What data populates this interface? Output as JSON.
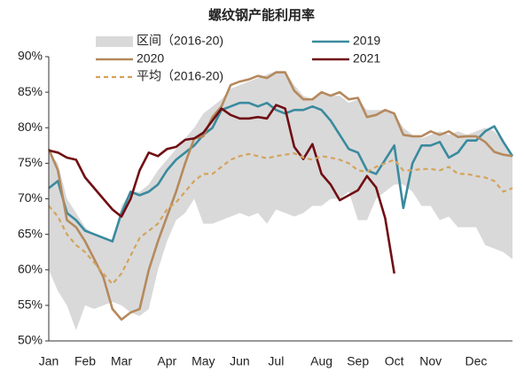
{
  "chart_data": {
    "type": "line",
    "title": "螺纹钢产能利用率",
    "categories": [
      "Jan",
      null,
      null,
      null,
      "Feb",
      null,
      null,
      null,
      "Mar",
      null,
      null,
      null,
      null,
      "Apr",
      null,
      null,
      null,
      "May",
      null,
      null,
      null,
      "Jun",
      null,
      null,
      null,
      "Jul",
      null,
      null,
      null,
      null,
      "Aug",
      null,
      null,
      null,
      "Sep",
      null,
      null,
      null,
      "Oct",
      null,
      null,
      null,
      "Nov",
      null,
      null,
      null,
      null,
      "Dec",
      null,
      null,
      null,
      null
    ],
    "ylim": [
      50,
      90
    ],
    "yticks": [
      {
        "value": 50,
        "label": "50%"
      },
      {
        "value": 55,
        "label": "55%"
      },
      {
        "value": 60,
        "label": "60%"
      },
      {
        "value": 65,
        "label": "65%"
      },
      {
        "value": 70,
        "label": "70%"
      },
      {
        "value": 75,
        "label": "75%"
      },
      {
        "value": 80,
        "label": "80%"
      },
      {
        "value": 85,
        "label": "85%"
      },
      {
        "value": 90,
        "label": "90%"
      }
    ],
    "series": [
      {
        "name": "区间（2016-20)",
        "color": "#d9d9d9",
        "style": "band",
        "upper": [
          76.5,
          75,
          70,
          68,
          66,
          65,
          64.5,
          64,
          69,
          71,
          71,
          72,
          74,
          75.5,
          77,
          78.5,
          80,
          82,
          83,
          84,
          85.5,
          86,
          86.5,
          87,
          87.5,
          88,
          88,
          86,
          84.5,
          84,
          85,
          84.5,
          84.5,
          83.5,
          84,
          82.5,
          82.5,
          82.5,
          82,
          80,
          79,
          78.5,
          79,
          79.5,
          79,
          79.5,
          79,
          79.5,
          80,
          79.5,
          78,
          76
        ],
        "lower": [
          60,
          57,
          55,
          51.5,
          55,
          54.5,
          55,
          55.5,
          55,
          54,
          53.5,
          54.5,
          60,
          64,
          67,
          68,
          70,
          66.5,
          66.5,
          67,
          67.5,
          68,
          67.5,
          68,
          66.5,
          68.5,
          68,
          67.5,
          68,
          69,
          69,
          70,
          70,
          71,
          67,
          67,
          70,
          71,
          72,
          72,
          71,
          69,
          69,
          67,
          67.5,
          66,
          66,
          66,
          63.5,
          63,
          62.5,
          61.5
        ]
      },
      {
        "name": "2019",
        "color": "#3a8a9e",
        "style": "solid",
        "values": [
          71.5,
          72.5,
          68,
          67,
          65.5,
          65,
          64.5,
          64,
          68,
          71,
          70.5,
          71,
          72,
          74,
          75.5,
          76.5,
          77.5,
          79,
          80,
          82.5,
          83,
          83.5,
          83.5,
          83,
          83.5,
          82.5,
          82,
          82.5,
          82.5,
          83,
          82.5,
          81,
          79,
          77,
          76.5,
          74,
          73.5,
          75.5,
          77.5,
          68.7,
          75,
          77.5,
          77.5,
          78,
          75.8,
          76.5,
          78.2,
          78.2,
          79.5,
          80.2,
          78,
          76
        ]
      },
      {
        "name": "2020",
        "color": "#b5895e",
        "style": "solid",
        "values": [
          77,
          74,
          67,
          66,
          64,
          61.5,
          59,
          54.5,
          53,
          54,
          54.5,
          60,
          64,
          67.5,
          71,
          75,
          78.5,
          78.8,
          81.5,
          83,
          86,
          86.5,
          86.8,
          87.3,
          87,
          87.8,
          87.8,
          85.2,
          84,
          84,
          85,
          84.5,
          85,
          84,
          84.2,
          81.5,
          81.8,
          82.5,
          82,
          79,
          78.8,
          78.8,
          79.5,
          79,
          79.5,
          78.7,
          78.8,
          78.8,
          78,
          76.6,
          76.2,
          76
        ]
      },
      {
        "name": "2021",
        "color": "#700f14",
        "style": "solid",
        "values": [
          76.8,
          76.5,
          75.8,
          75.5,
          73,
          71.5,
          70,
          68.5,
          67.5,
          70,
          74,
          76.5,
          76,
          77,
          77.3,
          78.3,
          78.5,
          79.3,
          81,
          82.7,
          81.8,
          81.3,
          81.3,
          81.5,
          81.3,
          83.2,
          82.7,
          77.3,
          75.6,
          77.7,
          73.5,
          72,
          69.8,
          70.5,
          71.2,
          73.2,
          71.6,
          67.3,
          59.5,
          null,
          null,
          null,
          null,
          null,
          null,
          null,
          null,
          null,
          null,
          null,
          null,
          null
        ]
      },
      {
        "name": "平均（2016-20)",
        "color": "#d4a35c",
        "style": "dashed",
        "values": [
          69,
          67.5,
          65,
          63.5,
          62.5,
          61,
          59.5,
          58,
          59.5,
          62,
          64.5,
          65.5,
          66.5,
          68.5,
          69.5,
          71,
          72.5,
          73.5,
          73.5,
          74.5,
          75.5,
          76,
          76.3,
          76,
          75.7,
          76,
          76.2,
          76.4,
          75.8,
          75.5,
          76,
          75.8,
          75.5,
          75,
          74,
          73.8,
          74.5,
          75,
          75.5,
          74,
          74,
          74.2,
          74.2,
          74,
          74.5,
          73.5,
          73.5,
          73.2,
          73,
          72.5,
          71,
          71.5
        ]
      }
    ]
  }
}
